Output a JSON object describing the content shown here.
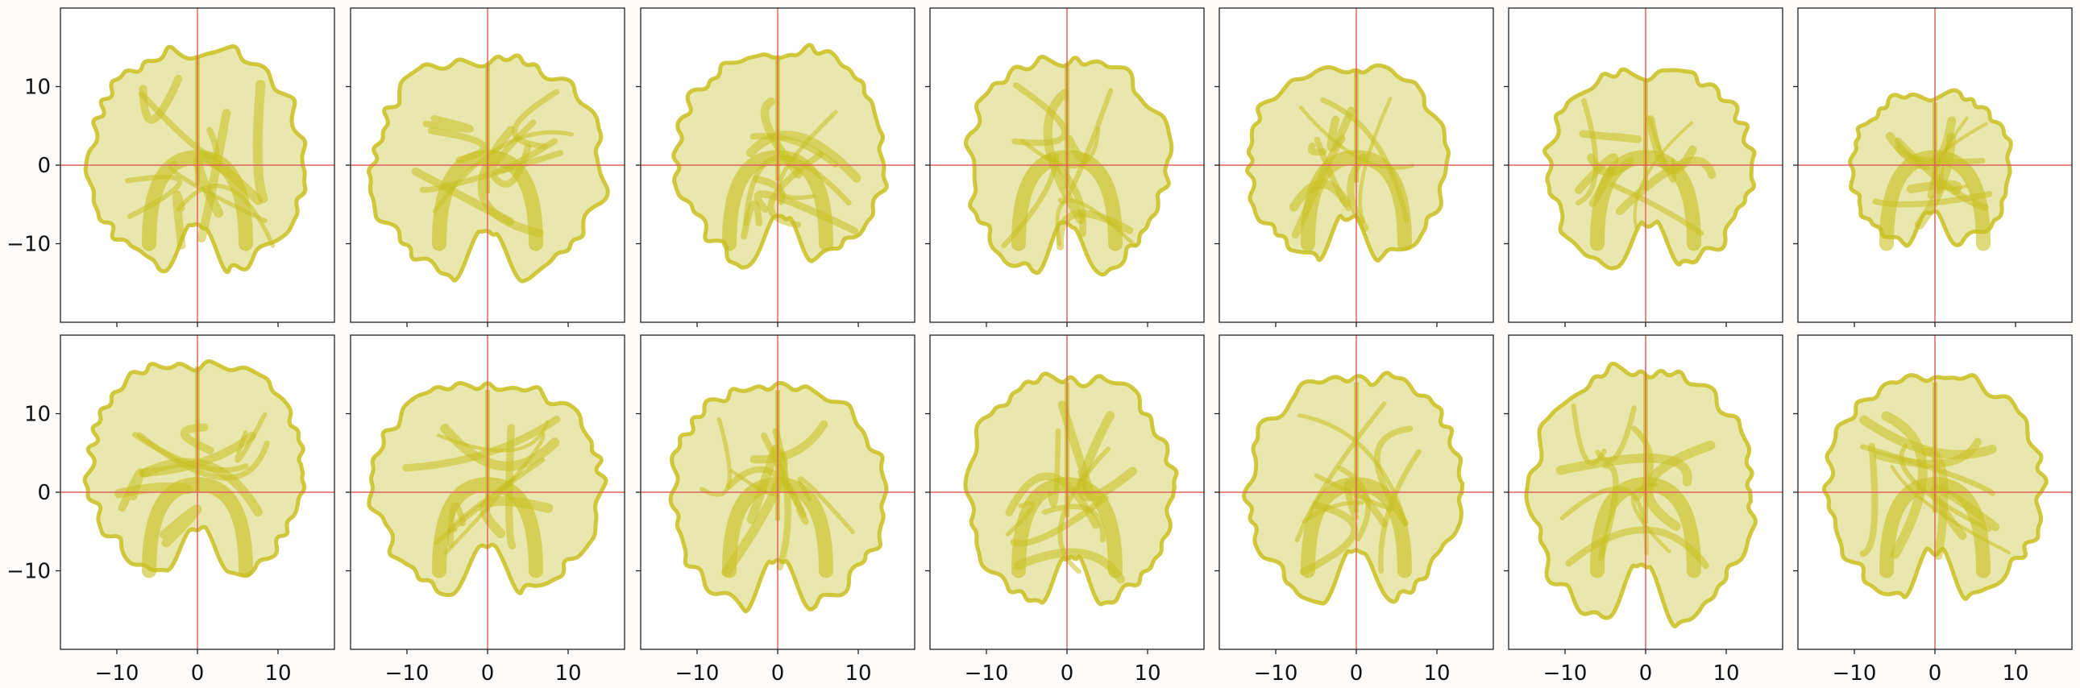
{
  "figure": {
    "background": "#fdfafa",
    "rows": 2,
    "cols": 7
  },
  "chart_data": {
    "type": "scatter",
    "description_kind": "grid of 14 subplots of dense yellow point clouds (brain-shaped surfaces), with red crosshair lines at x=0 and y=0",
    "xlim": [
      -17,
      17
    ],
    "ylim": [
      -20,
      20
    ],
    "xticks": [
      -10,
      0,
      10
    ],
    "yticks": [
      -10,
      0,
      10
    ],
    "xtick_labels": [
      "−10",
      "0",
      "10"
    ],
    "ytick_labels": [
      "−10",
      "0",
      "10"
    ],
    "crosshair": {
      "x": 0,
      "y": 0,
      "color": "#e06060"
    },
    "point_color": "#c8c020",
    "fill_color": "#d6d36a",
    "panels": [
      {
        "row": 0,
        "col": 0,
        "extent_x": [
          -14,
          14
        ],
        "extent_y": [
          -15,
          16
        ]
      },
      {
        "row": 0,
        "col": 1,
        "extent_x": [
          -15,
          15
        ],
        "extent_y": [
          -16,
          15
        ]
      },
      {
        "row": 0,
        "col": 2,
        "extent_x": [
          -13,
          14
        ],
        "extent_y": [
          -14,
          16
        ]
      },
      {
        "row": 0,
        "col": 3,
        "extent_x": [
          -13,
          13
        ],
        "extent_y": [
          -15,
          15
        ]
      },
      {
        "row": 0,
        "col": 4,
        "extent_x": [
          -14,
          12
        ],
        "extent_y": [
          -13,
          14
        ]
      },
      {
        "row": 0,
        "col": 5,
        "extent_x": [
          -13,
          14
        ],
        "extent_y": [
          -14,
          13
        ]
      },
      {
        "row": 0,
        "col": 6,
        "extent_x": [
          -11,
          10
        ],
        "extent_y": [
          -11,
          10
        ]
      },
      {
        "row": 1,
        "col": 0,
        "extent_x": [
          -14,
          14
        ],
        "extent_y": [
          -12,
          18
        ]
      },
      {
        "row": 1,
        "col": 1,
        "extent_x": [
          -15,
          15
        ],
        "extent_y": [
          -14,
          15
        ]
      },
      {
        "row": 1,
        "col": 2,
        "extent_x": [
          -14,
          14
        ],
        "extent_y": [
          -16,
          15
        ]
      },
      {
        "row": 1,
        "col": 3,
        "extent_x": [
          -13,
          14
        ],
        "extent_y": [
          -16,
          16
        ]
      },
      {
        "row": 1,
        "col": 4,
        "extent_x": [
          -14,
          14
        ],
        "extent_y": [
          -15,
          16
        ]
      },
      {
        "row": 1,
        "col": 5,
        "extent_x": [
          -15,
          14
        ],
        "extent_y": [
          -18,
          17
        ]
      },
      {
        "row": 1,
        "col": 6,
        "extent_x": [
          -14,
          14
        ],
        "extent_y": [
          -15,
          16
        ]
      }
    ]
  }
}
